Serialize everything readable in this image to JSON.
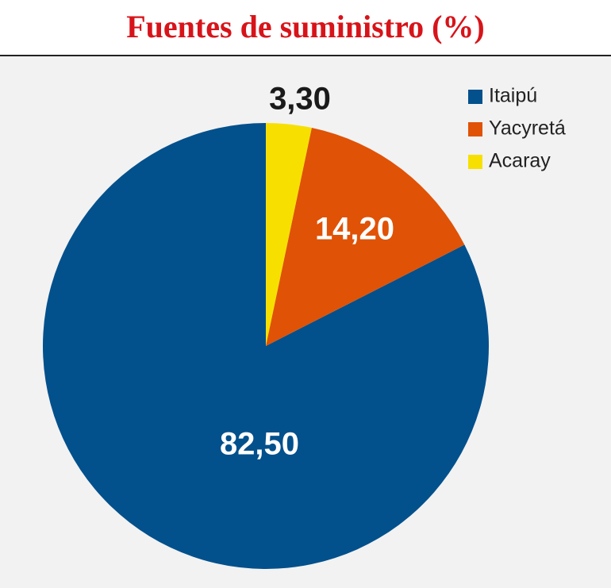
{
  "chart_data": {
    "type": "pie",
    "title": "Fuentes de suministro (%)",
    "categories": [
      "Itaipú",
      "Yacyretá",
      "Acaray"
    ],
    "values": [
      82.5,
      14.2,
      3.3
    ],
    "value_labels": [
      "82,50",
      "14,20",
      "3,30"
    ],
    "colors": [
      "#02508c",
      "#e05206",
      "#f7e000"
    ],
    "legend": "top-right"
  }
}
